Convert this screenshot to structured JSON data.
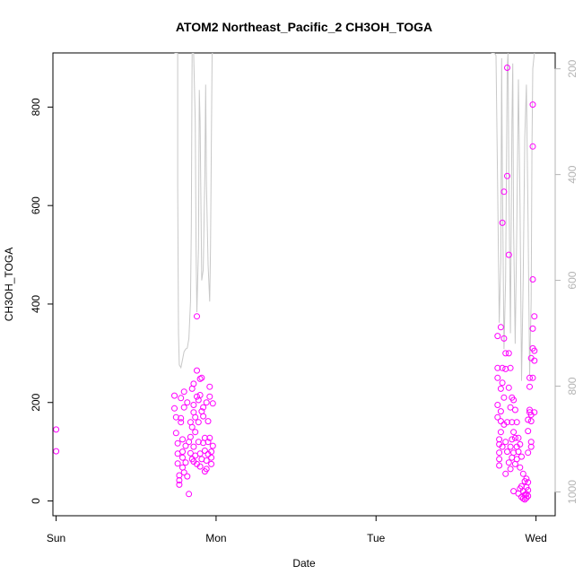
{
  "chart_data": {
    "type": "scatter",
    "title": "ATOM2 Northeast_Pacific_2 CH3OH_TOGA",
    "xlabel": "Date",
    "ylabel": "CH3OH_TOGA",
    "x_ticks": [
      "Sun",
      "Mon",
      "Tue",
      "Wed"
    ],
    "x_unit": "days since Sun 00:00",
    "xlim": [
      -0.02,
      3.12
    ],
    "ylim": [
      -30,
      910
    ],
    "y_ticks": [
      0,
      200,
      400,
      600,
      800
    ],
    "y2_ticks": [
      200,
      400,
      600,
      800,
      1000
    ],
    "y2lim": [
      1045,
      170
    ],
    "y2_inverted": true,
    "marker_color": "#ff00ff",
    "line_color": "#c8c8c8",
    "grid": false,
    "series": [
      {
        "kind": "points",
        "points": [
          [
            0.0,
            145
          ],
          [
            0.0,
            101
          ],
          [
            0.74,
            188
          ],
          [
            0.74,
            214
          ],
          [
            0.75,
            170
          ],
          [
            0.75,
            138
          ],
          [
            0.76,
            117
          ],
          [
            0.76,
            96
          ],
          [
            0.76,
            76
          ],
          [
            0.77,
            52
          ],
          [
            0.77,
            42
          ],
          [
            0.77,
            33
          ],
          [
            0.78,
            209
          ],
          [
            0.78,
            168
          ],
          [
            0.78,
            160
          ],
          [
            0.79,
            125
          ],
          [
            0.79,
            100
          ],
          [
            0.79,
            88
          ],
          [
            0.79,
            68
          ],
          [
            0.8,
            222
          ],
          [
            0.8,
            190
          ],
          [
            0.8,
            58
          ],
          [
            0.81,
            112
          ],
          [
            0.81,
            78
          ],
          [
            0.82,
            200
          ],
          [
            0.82,
            50
          ],
          [
            0.83,
            14
          ],
          [
            0.83,
            120
          ],
          [
            0.84,
            97
          ],
          [
            0.84,
            130
          ],
          [
            0.84,
            160
          ],
          [
            0.85,
            228
          ],
          [
            0.85,
            150
          ],
          [
            0.85,
            85
          ],
          [
            0.86,
            238
          ],
          [
            0.86,
            195
          ],
          [
            0.86,
            180
          ],
          [
            0.86,
            110
          ],
          [
            0.86,
            80
          ],
          [
            0.87,
            170
          ],
          [
            0.87,
            140
          ],
          [
            0.87,
            92
          ],
          [
            0.88,
            375
          ],
          [
            0.88,
            265
          ],
          [
            0.88,
            212
          ],
          [
            0.88,
            75
          ],
          [
            0.89,
            205
          ],
          [
            0.89,
            160
          ],
          [
            0.89,
            120
          ],
          [
            0.9,
            248
          ],
          [
            0.9,
            215
          ],
          [
            0.9,
            96
          ],
          [
            0.9,
            70
          ],
          [
            0.91,
            250
          ],
          [
            0.91,
            182
          ],
          [
            0.91,
            85
          ],
          [
            0.92,
            118
          ],
          [
            0.92,
            190
          ],
          [
            0.92,
            172
          ],
          [
            0.93,
            60
          ],
          [
            0.93,
            102
          ],
          [
            0.93,
            128
          ],
          [
            0.94,
            65
          ],
          [
            0.94,
            82
          ],
          [
            0.94,
            200
          ],
          [
            0.95,
            120
          ],
          [
            0.95,
            162
          ],
          [
            0.95,
            95
          ],
          [
            0.96,
            232
          ],
          [
            0.96,
            212
          ],
          [
            0.96,
            128
          ],
          [
            0.97,
            75
          ],
          [
            0.97,
            100
          ],
          [
            0.97,
            88
          ],
          [
            0.98,
            112
          ],
          [
            0.98,
            198
          ],
          [
            2.76,
            335
          ],
          [
            2.76,
            270
          ],
          [
            2.76,
            250
          ],
          [
            2.76,
            195
          ],
          [
            2.76,
            170
          ],
          [
            2.77,
            125
          ],
          [
            2.77,
            115
          ],
          [
            2.77,
            98
          ],
          [
            2.77,
            85
          ],
          [
            2.77,
            72
          ],
          [
            2.78,
            353
          ],
          [
            2.78,
            228
          ],
          [
            2.78,
            182
          ],
          [
            2.78,
            162
          ],
          [
            2.78,
            140
          ],
          [
            2.79,
            565
          ],
          [
            2.79,
            270
          ],
          [
            2.79,
            240
          ],
          [
            2.79,
            110
          ],
          [
            2.8,
            628
          ],
          [
            2.8,
            330
          ],
          [
            2.8,
            210
          ],
          [
            2.8,
            155
          ],
          [
            2.81,
            300
          ],
          [
            2.81,
            268
          ],
          [
            2.81,
            120
          ],
          [
            2.81,
            55
          ],
          [
            2.82,
            880
          ],
          [
            2.82,
            660
          ],
          [
            2.82,
            160
          ],
          [
            2.82,
            100
          ],
          [
            2.83,
            500
          ],
          [
            2.83,
            300
          ],
          [
            2.83,
            230
          ],
          [
            2.83,
            78
          ],
          [
            2.84,
            270
          ],
          [
            2.84,
            190
          ],
          [
            2.84,
            110
          ],
          [
            2.84,
            65
          ],
          [
            2.85,
            210
          ],
          [
            2.85,
            160
          ],
          [
            2.85,
            125
          ],
          [
            2.85,
            88
          ],
          [
            2.86,
            205
          ],
          [
            2.86,
            140
          ],
          [
            2.86,
            98
          ],
          [
            2.86,
            20
          ],
          [
            2.87,
            185
          ],
          [
            2.87,
            128
          ],
          [
            2.87,
            75
          ],
          [
            2.88,
            160
          ],
          [
            2.88,
            110
          ],
          [
            2.88,
            85
          ],
          [
            2.89,
            128
          ],
          [
            2.89,
            100
          ],
          [
            2.89,
            15
          ],
          [
            2.9,
            115
          ],
          [
            2.9,
            68
          ],
          [
            2.9,
            25
          ],
          [
            2.91,
            90
          ],
          [
            2.91,
            30
          ],
          [
            2.91,
            8
          ],
          [
            2.92,
            55
          ],
          [
            2.92,
            20
          ],
          [
            2.92,
            5
          ],
          [
            2.93,
            40
          ],
          [
            2.93,
            12
          ],
          [
            2.93,
            3
          ],
          [
            2.94,
            45
          ],
          [
            2.94,
            28
          ],
          [
            2.94,
            14
          ],
          [
            2.94,
            6
          ],
          [
            2.95,
            38
          ],
          [
            2.95,
            22
          ],
          [
            2.95,
            10
          ],
          [
            2.95,
            98
          ],
          [
            2.95,
            142
          ],
          [
            2.95,
            165
          ],
          [
            2.96,
            250
          ],
          [
            2.96,
            232
          ],
          [
            2.96,
            185
          ],
          [
            2.96,
            180
          ],
          [
            2.97,
            290
          ],
          [
            2.97,
            175
          ],
          [
            2.97,
            162
          ],
          [
            2.97,
            120
          ],
          [
            2.97,
            110
          ],
          [
            2.98,
            805
          ],
          [
            2.98,
            720
          ],
          [
            2.98,
            450
          ],
          [
            2.98,
            350
          ],
          [
            2.98,
            310
          ],
          [
            2.98,
            250
          ],
          [
            2.99,
            375
          ],
          [
            2.99,
            305
          ],
          [
            2.99,
            285
          ],
          [
            2.99,
            180
          ]
        ]
      },
      {
        "kind": "line",
        "axis": "right",
        "segments": [
          [
            [
              0.74,
              170
            ],
            [
              0.75,
              170
            ],
            [
              0.76,
              170
            ],
            [
              0.76,
              420
            ],
            [
              0.765,
              700
            ],
            [
              0.77,
              760
            ],
            [
              0.78,
              765
            ],
            [
              0.79,
              750
            ],
            [
              0.8,
              735
            ],
            [
              0.81,
              730
            ],
            [
              0.82,
              728
            ],
            [
              0.83,
              710
            ],
            [
              0.84,
              640
            ],
            [
              0.845,
              500
            ],
            [
              0.85,
              170
            ],
            [
              0.86,
              170
            ],
            [
              0.87,
              300
            ],
            [
              0.875,
              540
            ],
            [
              0.88,
              660
            ],
            [
              0.89,
              540
            ],
            [
              0.895,
              240
            ],
            [
              0.9,
              300
            ],
            [
              0.91,
              600
            ],
            [
              0.92,
              580
            ],
            [
              0.93,
              400
            ],
            [
              0.935,
              230
            ],
            [
              0.94,
              420
            ],
            [
              0.95,
              570
            ],
            [
              0.96,
              640
            ],
            [
              0.965,
              540
            ],
            [
              0.97,
              350
            ],
            [
              0.975,
              170
            ],
            [
              0.98,
              170
            ]
          ],
          [
            [
              2.72,
              170
            ],
            [
              2.74,
              170
            ],
            [
              2.75,
              175
            ],
            [
              2.76,
              420
            ],
            [
              2.77,
              680
            ],
            [
              2.78,
              560
            ],
            [
              2.785,
              180
            ],
            [
              2.79,
              400
            ],
            [
              2.8,
              730
            ],
            [
              2.81,
              600
            ],
            [
              2.82,
              200
            ],
            [
              2.825,
              170
            ],
            [
              2.83,
              400
            ],
            [
              2.84,
              700
            ],
            [
              2.85,
              300
            ],
            [
              2.855,
              190
            ],
            [
              2.86,
              500
            ],
            [
              2.87,
              720
            ],
            [
              2.88,
              500
            ],
            [
              2.89,
              220
            ],
            [
              2.9,
              460
            ],
            [
              2.91,
              790
            ],
            [
              2.92,
              600
            ],
            [
              2.93,
              330
            ],
            [
              2.94,
              230
            ],
            [
              2.95,
              480
            ],
            [
              2.96,
              780
            ],
            [
              2.97,
              640
            ],
            [
              2.975,
              350
            ],
            [
              2.98,
              200
            ],
            [
              2.99,
              170
            ]
          ]
        ]
      }
    ]
  }
}
